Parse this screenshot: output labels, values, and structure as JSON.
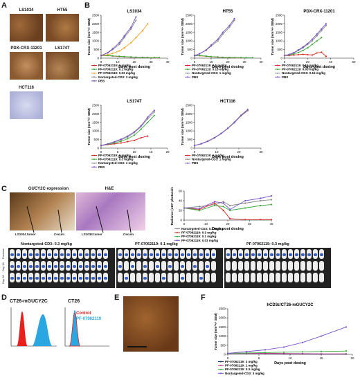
{
  "panels": {
    "A": "A",
    "B": "B",
    "C": "C",
    "D": "D",
    "E": "E",
    "F": "F"
  },
  "panelA": {
    "images": [
      "LS1034",
      "HT55",
      "PDX-CRX-11201",
      "LS174T",
      "HCT116"
    ]
  },
  "panelC": {
    "ihc_label": "GUCY2C expression",
    "he_label": "H&E",
    "arrows": [
      "LS1034 tumor",
      "Cecum",
      "LS1034 tumor",
      "Cecum"
    ],
    "imaging_groups": [
      "Nontargeted-CD3: 0.3 mg/kg",
      "PF-07062119: 0.1 mg/kg",
      "PF-07062119: 0.3 mg/kg"
    ],
    "row_labels": [
      "Predose",
      "Day 14",
      "Day 30"
    ]
  },
  "panelD": {
    "left_title": "CT26-mGUCY2C",
    "right_title": "CT26",
    "legend": [
      "Control",
      "PF-07062119"
    ],
    "colors": {
      "control": "#e8201e",
      "pf": "#2aa7e0"
    }
  },
  "colors": {
    "red": "#d9281e",
    "orange": "#f0a020",
    "green": "#3aa83a",
    "gray": "#888888",
    "purple": "#7a52c8",
    "darkblue": "#1a2a6c",
    "magenta": "#b0308a",
    "black": "#222222"
  },
  "chart_data": [
    {
      "id": "LS1034",
      "type": "line",
      "title": "LS1034",
      "ylabel": "Tumor size (mm³+/- SEM)",
      "xlabel": "Days post dosing",
      "xlim": [
        0,
        40
      ],
      "ylim": [
        0,
        2500
      ],
      "xticks": [
        0,
        10,
        20,
        30,
        40
      ],
      "yticks": [
        0,
        500,
        1000,
        1500,
        2000,
        2500
      ],
      "series": [
        {
          "name": "PF-07062119: 1 mg/kg",
          "color": "#d9281e",
          "x": [
            0,
            4,
            7,
            11,
            14,
            18,
            21,
            25,
            28,
            32,
            35
          ],
          "y": [
            150,
            150,
            120,
            100,
            80,
            60,
            50,
            40,
            30,
            30,
            30
          ]
        },
        {
          "name": "PF-07062119: 0.1 mg/kg",
          "color": "#3aa83a",
          "x": [
            0,
            4,
            7,
            11,
            14,
            18,
            21,
            25,
            28,
            32,
            35
          ],
          "y": [
            150,
            150,
            130,
            110,
            90,
            70,
            50,
            40,
            30,
            30,
            30
          ]
        },
        {
          "name": "PF-07062119: 0.03 mg/kg",
          "color": "#f0a020",
          "x": [
            0,
            4,
            7,
            11,
            14,
            18,
            21,
            25,
            28
          ],
          "y": [
            150,
            200,
            280,
            420,
            600,
            900,
            1200,
            1600,
            2000
          ]
        },
        {
          "name": "Nontargeted-CD3: 3 mg/kg",
          "color": "#888888",
          "x": [
            0,
            4,
            7,
            11,
            14,
            18,
            21
          ],
          "y": [
            150,
            300,
            500,
            800,
            1200,
            1700,
            2200
          ]
        },
        {
          "name": "PBS",
          "color": "#7a52c8",
          "x": [
            0,
            4,
            7,
            11,
            14,
            18,
            21
          ],
          "y": [
            150,
            320,
            550,
            900,
            1300,
            1800,
            2400
          ]
        }
      ]
    },
    {
      "id": "HT55",
      "type": "line",
      "title": "HT55",
      "ylabel": "Tumor size (mm³+/- SEM)",
      "xlabel": "Days post dosing",
      "xlim": [
        0,
        40
      ],
      "ylim": [
        0,
        2500
      ],
      "xticks": [
        0,
        10,
        20,
        30,
        40
      ],
      "yticks": [
        0,
        500,
        1000,
        1500,
        2000,
        2500
      ],
      "series": [
        {
          "name": "PF-07062119: 0.5 mg/kg",
          "color": "#d9281e",
          "x": [
            0,
            3,
            7,
            10,
            14,
            17,
            21,
            24,
            28
          ],
          "y": [
            150,
            140,
            110,
            80,
            60,
            40,
            30,
            20,
            20
          ]
        },
        {
          "name": "PF-07062119: 0.15 mg/kg",
          "color": "#3aa83a",
          "x": [
            0,
            3,
            7,
            10,
            14,
            17,
            21,
            24,
            28,
            31,
            35
          ],
          "y": [
            150,
            150,
            120,
            90,
            70,
            50,
            40,
            30,
            30,
            25,
            25
          ]
        },
        {
          "name": "Nontargeted-CD3: 1 mg/kg",
          "color": "#888888",
          "x": [
            0,
            3,
            7,
            10,
            14,
            17,
            21,
            24
          ],
          "y": [
            150,
            250,
            450,
            700,
            1000,
            1400,
            1800,
            2200
          ]
        },
        {
          "name": "PBS",
          "color": "#7a52c8",
          "x": [
            0,
            3,
            7,
            10,
            14,
            17,
            21,
            24
          ],
          "y": [
            150,
            260,
            480,
            760,
            1100,
            1500,
            1900,
            2300
          ]
        }
      ]
    },
    {
      "id": "PDX-CRX-11201",
      "type": "line",
      "title": "PDX-CRX-11201",
      "ylabel": "Tumor size (mm³+/- SEM)",
      "xlabel": "Days post dosing",
      "xlim": [
        0,
        60
      ],
      "ylim": [
        0,
        2500
      ],
      "xticks": [
        0,
        20,
        40,
        60
      ],
      "yticks": [
        0,
        500,
        1000,
        1500,
        2000,
        2500
      ],
      "series": [
        {
          "name": "PF-07062119: 0.15 mg/kg",
          "color": "#d9281e",
          "x": [
            0,
            4,
            8,
            12,
            16,
            20,
            24,
            28,
            32,
            36
          ],
          "y": [
            150,
            150,
            180,
            200,
            220,
            200,
            180,
            300,
            350,
            100
          ]
        },
        {
          "name": "PF-07062119: 0.05 mg/kg",
          "color": "#3aa83a",
          "x": [
            0,
            4,
            8,
            12,
            16,
            20,
            24,
            28,
            32
          ],
          "y": [
            150,
            180,
            250,
            330,
            450,
            600,
            800,
            1000,
            1200
          ]
        },
        {
          "name": "Nontargeted-CD3: 0.15 mg/kg",
          "color": "#888888",
          "x": [
            0,
            4,
            8,
            12,
            16,
            20,
            24,
            28,
            32,
            36
          ],
          "y": [
            150,
            200,
            300,
            450,
            600,
            800,
            1000,
            1300,
            1600,
            1900
          ]
        },
        {
          "name": "PBS",
          "color": "#7a52c8",
          "x": [
            0,
            4,
            8,
            12,
            16,
            20,
            24,
            28,
            32,
            36
          ],
          "y": [
            150,
            220,
            320,
            480,
            650,
            850,
            1100,
            1400,
            1700,
            2000
          ]
        }
      ]
    },
    {
      "id": "LS174T",
      "type": "line",
      "title": "LS174T",
      "ylabel": "Tumor size (mm³+/- SEM)",
      "xlabel": "Days post dosing",
      "xlim": [
        0,
        20
      ],
      "ylim": [
        0,
        2500
      ],
      "xticks": [
        0,
        5,
        10,
        15,
        20
      ],
      "yticks": [
        0,
        500,
        1000,
        1500,
        2000,
        2500
      ],
      "series": [
        {
          "name": "PF-07062119: 1 mg/kg",
          "color": "#d9281e",
          "x": [
            0,
            2,
            4,
            6,
            8,
            10,
            12,
            14
          ],
          "y": [
            150,
            200,
            250,
            300,
            380,
            450,
            600,
            700
          ]
        },
        {
          "name": "PF-07062119: 0.3 mg/kg",
          "color": "#3aa83a",
          "x": [
            0,
            2,
            4,
            6,
            8,
            10,
            12,
            14,
            16
          ],
          "y": [
            150,
            220,
            300,
            400,
            550,
            750,
            1100,
            1500,
            1900
          ]
        },
        {
          "name": "Nontargeted-CD3: 1 mg/kg",
          "color": "#888888",
          "x": [
            0,
            2,
            4,
            6,
            8,
            10,
            12,
            14,
            16
          ],
          "y": [
            150,
            240,
            350,
            480,
            650,
            900,
            1250,
            1700,
            2100
          ]
        },
        {
          "name": "PBS",
          "color": "#7a52c8",
          "x": [
            0,
            2,
            4,
            6,
            8,
            10,
            12,
            14,
            16
          ],
          "y": [
            150,
            250,
            370,
            520,
            700,
            950,
            1300,
            1800,
            2200
          ]
        }
      ]
    },
    {
      "id": "HCT116",
      "type": "line",
      "title": "HCT116",
      "ylabel": "Tumor size (mm³+/- SEM)",
      "xlabel": "Days post dosing",
      "xlim": [
        0,
        30
      ],
      "ylim": [
        0,
        2500
      ],
      "xticks": [
        0,
        10,
        20,
        30
      ],
      "yticks": [
        0,
        500,
        1000,
        1500,
        2000,
        2500
      ],
      "series": [
        {
          "name": "PF-07062119: 1 mg/kg",
          "color": "#d9281e",
          "x": [
            0,
            3,
            6,
            9,
            12,
            15,
            18,
            21,
            24
          ],
          "y": [
            150,
            250,
            400,
            600,
            850,
            1150,
            1500,
            1900,
            2200
          ]
        },
        {
          "name": "Nontargeted-CD3: 1 mg/kg",
          "color": "#888888",
          "x": [
            0,
            3,
            6,
            9,
            12,
            15,
            18,
            21,
            24
          ],
          "y": [
            150,
            240,
            390,
            590,
            840,
            1140,
            1480,
            1880,
            2180
          ]
        },
        {
          "name": "PBS",
          "color": "#7a52c8",
          "x": [
            0,
            3,
            6,
            9,
            12,
            15,
            18,
            21,
            24
          ],
          "y": [
            150,
            260,
            410,
            610,
            860,
            1160,
            1520,
            1920,
            2250
          ]
        }
      ]
    },
    {
      "id": "RADIANCE",
      "type": "line",
      "title": "",
      "ylabel": "Radiance (x10⁸ photons/s)",
      "xlabel": "Days post dosing",
      "xlim": [
        0,
        40
      ],
      "ylim": [
        0,
        60
      ],
      "xticks": [
        0,
        10,
        20,
        30,
        40
      ],
      "yticks": [
        0,
        20,
        40,
        60
      ],
      "series": [
        {
          "name": "Nontargeted-CD3: 0.3 mg/kg",
          "color": "#888888",
          "x": [
            0,
            7,
            14,
            18,
            21,
            28,
            35,
            40
          ],
          "y": [
            25,
            28,
            32,
            38,
            30,
            35,
            40,
            42
          ]
        },
        {
          "name": "PF-07062119: 0.3 mg/kg",
          "color": "#d9281e",
          "x": [
            0,
            7,
            14,
            18,
            21,
            28,
            35,
            40
          ],
          "y": [
            25,
            22,
            35,
            20,
            3,
            1,
            1,
            1
          ]
        },
        {
          "name": "PF-07062119: 0.1 mg/kg",
          "color": "#3aa83a",
          "x": [
            0,
            7,
            14,
            18,
            21,
            28,
            35,
            40
          ],
          "y": [
            25,
            20,
            30,
            28,
            20,
            25,
            30,
            32
          ]
        },
        {
          "name": "PF-07062119: 0.03 mg/kg",
          "color": "#7a52c8",
          "x": [
            0,
            7,
            14,
            18,
            21,
            28,
            35,
            40
          ],
          "y": [
            25,
            24,
            38,
            35,
            22,
            40,
            45,
            50
          ]
        }
      ]
    },
    {
      "id": "CT26-mGUCY2C",
      "type": "line",
      "title": "hCD3ε/CT26-mGUCY2C",
      "ylabel": "Tumor size (mm³+/- SEM)",
      "xlabel": "Days post dosing",
      "xlim": [
        0,
        20
      ],
      "ylim": [
        0,
        2500
      ],
      "xticks": [
        0,
        5,
        10,
        15,
        20
      ],
      "yticks": [
        0,
        500,
        1000,
        1500,
        2000,
        2500
      ],
      "series": [
        {
          "name": "PF-07062119: 3 mg/kg",
          "color": "#1a2a6c",
          "x": [
            0,
            3,
            6,
            9,
            12,
            15,
            19
          ],
          "y": [
            60,
            60,
            50,
            40,
            30,
            20,
            20
          ]
        },
        {
          "name": "PF-07062119: 1 mg/kg",
          "color": "#b0308a",
          "x": [
            0,
            3,
            6,
            9,
            12,
            15,
            19
          ],
          "y": [
            60,
            60,
            55,
            50,
            40,
            30,
            30
          ]
        },
        {
          "name": "PF-07062119: 0.3 mg/kg",
          "color": "#3aa83a",
          "x": [
            0,
            3,
            6,
            9,
            12,
            15,
            19
          ],
          "y": [
            60,
            80,
            100,
            120,
            140,
            160,
            180
          ]
        },
        {
          "name": "Nontargeted-CD3: 3 mg/kg",
          "color": "#7a52c8",
          "x": [
            0,
            3,
            6,
            9,
            12,
            15,
            19
          ],
          "y": [
            60,
            150,
            250,
            400,
            650,
            1000,
            1500
          ]
        }
      ]
    }
  ]
}
